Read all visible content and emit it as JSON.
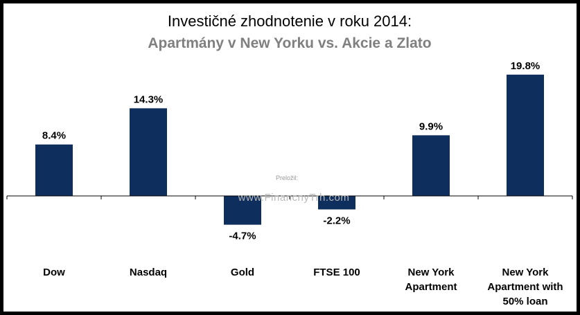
{
  "chart_data": {
    "type": "bar",
    "title": "Investičné zhodnotenie v roku 2014:",
    "subtitle": "Apartmány v New Yorku vs. Akcie a Zlato",
    "categories": [
      [
        "Dow"
      ],
      [
        "Nasdaq"
      ],
      [
        "Gold"
      ],
      [
        "FTSE 100"
      ],
      [
        "New York",
        "Apartment"
      ],
      [
        "New York",
        "Apartment with",
        "50% loan"
      ]
    ],
    "values": [
      8.4,
      14.3,
      -4.7,
      -2.2,
      9.9,
      19.8
    ],
    "data_labels": [
      "8.4%",
      "14.3%",
      "-4.7%",
      "-2.2%",
      "9.9%",
      "19.8%"
    ],
    "value_unit": "%",
    "ylim": [
      -8,
      22
    ],
    "xlabel": "",
    "ylabel": "",
    "grid": false,
    "bar_color": "#0e2f5e",
    "subtitle_color": "#7f7f7f"
  },
  "watermark": {
    "label": "Preložil:",
    "site": "www.FinancnyTrh.com"
  }
}
